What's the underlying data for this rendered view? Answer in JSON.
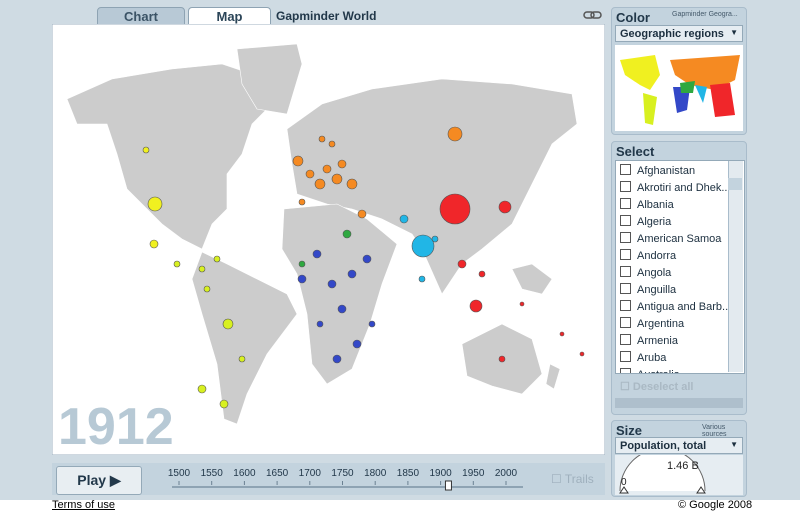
{
  "tabs": [
    "Chart",
    "Map"
  ],
  "title": "Gapminder World",
  "year": 1912,
  "color_panel": {
    "heading": "Color",
    "source": "Gapminder Geogra...",
    "dropdown": "Geographic regions"
  },
  "select_panel": {
    "heading": "Select",
    "items": [
      "Afghanistan",
      "Akrotiri and Dhek...",
      "Albania",
      "Algeria",
      "American Samoa",
      "Andorra",
      "Angola",
      "Anguilla",
      "Antigua and Barb...",
      "Argentina",
      "Armenia",
      "Aruba",
      "Australia"
    ],
    "deselect": "Deselect all"
  },
  "size_panel": {
    "heading": "Size",
    "source": "Various sources",
    "dropdown": "Population, total",
    "max_label": "1.46 B",
    "min_label": "0"
  },
  "controls": {
    "play": "Play",
    "timeline_ticks": [
      1500,
      1550,
      1600,
      1650,
      1700,
      1750,
      1800,
      1850,
      1900,
      1950,
      2000
    ],
    "trails": "Trails"
  },
  "footer": {
    "terms": "Terms of use",
    "copyright": "© Google 2008"
  }
}
